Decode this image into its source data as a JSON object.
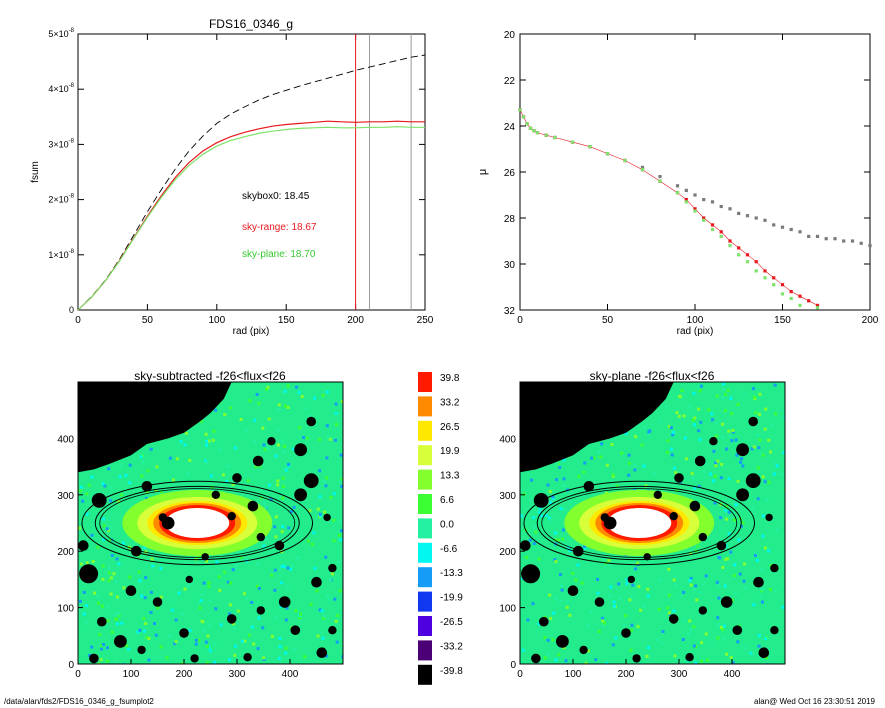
{
  "footer": {
    "left": "/data/alan/fds2/FDS16_0346_g_fsumplot2",
    "right": "alan@  Wed Oct 16 23:30:51 2019"
  },
  "colors": {
    "black_curve": "#000000",
    "red_curve": "#e8181e",
    "green_curve": "#7de36a",
    "gray_points": "#7a7a7a",
    "vline_red": "#e8181e",
    "vline_gray": "#9a9a9a"
  },
  "chart_data": [
    {
      "type": "line",
      "title": "FDS16_0346_g",
      "xlabel": "rad (pix)",
      "ylabel": "fsum",
      "xlim": [
        0,
        250
      ],
      "ylim": [
        0,
        5e-08
      ],
      "x_ticks": [
        "0",
        "50",
        "100",
        "150",
        "200",
        "250"
      ],
      "y_ticks": [
        {
          "base": "0",
          "exp": ""
        },
        {
          "base": "1×10",
          "exp": "-8"
        },
        {
          "base": "2×10",
          "exp": "-8"
        },
        {
          "base": "3×10",
          "exp": "-8"
        },
        {
          "base": "4×10",
          "exp": "-8"
        },
        {
          "base": "5×10",
          "exp": "-8"
        }
      ],
      "vertical_lines": [
        {
          "x": 200,
          "color": "red"
        },
        {
          "x": 210,
          "color": "gray"
        },
        {
          "x": 240,
          "color": "gray"
        }
      ],
      "annotations": [
        {
          "text": "skybox0: 18.45",
          "color": "black"
        },
        {
          "text": "sky-range: 18.67",
          "color": "red"
        },
        {
          "text": "sky-plane: 18.70",
          "color": "green"
        }
      ],
      "series": [
        {
          "style": "dashed",
          "color": "black",
          "x": [
            0,
            10,
            20,
            30,
            40,
            50,
            60,
            70,
            80,
            90,
            100,
            110,
            120,
            130,
            140,
            150,
            160,
            170,
            180,
            190,
            200,
            210,
            220,
            230,
            240,
            250
          ],
          "y": [
            0,
            2.5e-09,
            5.5e-09,
            9.2e-09,
            1.35e-08,
            1.78e-08,
            2.18e-08,
            2.55e-08,
            2.88e-08,
            3.15e-08,
            3.38e-08,
            3.55e-08,
            3.68e-08,
            3.8e-08,
            3.9e-08,
            3.98e-08,
            4.06e-08,
            4.13e-08,
            4.2e-08,
            4.27e-08,
            4.34e-08,
            4.4e-08,
            4.46e-08,
            4.52e-08,
            4.58e-08,
            4.62e-08
          ]
        },
        {
          "style": "solid",
          "color": "red",
          "x": [
            0,
            10,
            20,
            30,
            40,
            50,
            60,
            70,
            80,
            90,
            100,
            110,
            120,
            130,
            140,
            150,
            160,
            170,
            180,
            190,
            200,
            210,
            220,
            230,
            240,
            250
          ],
          "y": [
            0,
            2.4e-09,
            5.4e-09,
            9e-09,
            1.3e-08,
            1.7e-08,
            2.07e-08,
            2.4e-08,
            2.67e-08,
            2.88e-08,
            3.03e-08,
            3.14e-08,
            3.22e-08,
            3.28e-08,
            3.33e-08,
            3.36e-08,
            3.38e-08,
            3.4e-08,
            3.42e-08,
            3.41e-08,
            3.4e-08,
            3.41e-08,
            3.41e-08,
            3.42e-08,
            3.41e-08,
            3.41e-08
          ]
        },
        {
          "style": "solid",
          "color": "green",
          "x": [
            0,
            10,
            20,
            30,
            40,
            50,
            60,
            70,
            80,
            90,
            100,
            110,
            120,
            130,
            140,
            150,
            160,
            170,
            180,
            190,
            200,
            210,
            220,
            230,
            240,
            250
          ],
          "y": [
            0,
            2.4e-09,
            5.4e-09,
            8.9e-09,
            1.29e-08,
            1.68e-08,
            2.04e-08,
            2.36e-08,
            2.62e-08,
            2.82e-08,
            2.97e-08,
            3.07e-08,
            3.14e-08,
            3.2e-08,
            3.24e-08,
            3.27e-08,
            3.29e-08,
            3.3e-08,
            3.31e-08,
            3.3e-08,
            3.3e-08,
            3.31e-08,
            3.31e-08,
            3.32e-08,
            3.31e-08,
            3.31e-08
          ]
        }
      ]
    },
    {
      "type": "scatter",
      "xlabel": "rad (pix)",
      "ylabel": "μ",
      "xlim": [
        0,
        200
      ],
      "ylim": [
        32,
        20
      ],
      "x_ticks": [
        "0",
        "50",
        "100",
        "150",
        "200"
      ],
      "y_ticks": [
        "20",
        "22",
        "24",
        "26",
        "28",
        "30",
        "32"
      ],
      "series": [
        {
          "color": "gray",
          "x": [
            0,
            2,
            4,
            6,
            8,
            10,
            15,
            20,
            30,
            40,
            50,
            60,
            70,
            80,
            90,
            95,
            100,
            105,
            110,
            115,
            120,
            125,
            130,
            135,
            140,
            145,
            150,
            155,
            160,
            165,
            170,
            175,
            180,
            185,
            190,
            195,
            200
          ],
          "y": [
            23.3,
            23.6,
            23.9,
            24.1,
            24.2,
            24.3,
            24.4,
            24.5,
            24.7,
            24.9,
            25.2,
            25.5,
            25.8,
            26.2,
            26.6,
            26.8,
            27.0,
            27.2,
            27.3,
            27.5,
            27.6,
            27.8,
            27.9,
            28.0,
            28.1,
            28.3,
            28.4,
            28.5,
            28.6,
            28.8,
            28.8,
            28.9,
            28.9,
            29.0,
            29.0,
            29.1,
            29.2
          ]
        },
        {
          "color": "red",
          "x": [
            0,
            2,
            4,
            6,
            8,
            10,
            15,
            20,
            30,
            40,
            50,
            60,
            70,
            80,
            90,
            95,
            100,
            105,
            110,
            115,
            120,
            125,
            130,
            135,
            140,
            145,
            150,
            155,
            160,
            165,
            170
          ],
          "y": [
            23.3,
            23.6,
            23.9,
            24.1,
            24.2,
            24.3,
            24.4,
            24.5,
            24.7,
            24.9,
            25.2,
            25.5,
            25.9,
            26.4,
            26.9,
            27.2,
            27.6,
            28.0,
            28.3,
            28.6,
            29.0,
            29.3,
            29.6,
            29.9,
            30.3,
            30.6,
            30.9,
            31.2,
            31.4,
            31.6,
            31.8
          ]
        },
        {
          "color": "green",
          "x": [
            0,
            2,
            4,
            6,
            8,
            10,
            15,
            20,
            30,
            40,
            50,
            60,
            70,
            80,
            90,
            95,
            100,
            105,
            110,
            115,
            120,
            125,
            130,
            135,
            140,
            145,
            150,
            155,
            160,
            170
          ],
          "y": [
            23.3,
            23.6,
            23.9,
            24.1,
            24.2,
            24.3,
            24.4,
            24.5,
            24.7,
            24.9,
            25.2,
            25.5,
            25.9,
            26.4,
            26.9,
            27.3,
            27.7,
            28.1,
            28.5,
            28.8,
            29.2,
            29.6,
            29.9,
            30.3,
            30.6,
            30.9,
            31.3,
            31.5,
            31.8,
            31.9
          ]
        }
      ]
    },
    {
      "type": "heatmap",
      "title": "sky-subtracted -f26<flux<f26",
      "xlim": [
        0,
        500
      ],
      "ylim": [
        0,
        500
      ],
      "x_ticks": [
        "0",
        "100",
        "200",
        "300",
        "400"
      ],
      "y_ticks": [
        "0",
        "100",
        "200",
        "300",
        "400"
      ]
    },
    {
      "type": "heatmap",
      "title": "sky-plane -f26<flux<f26",
      "xlim": [
        0,
        500
      ],
      "ylim": [
        0,
        500
      ],
      "x_ticks": [
        "0",
        "100",
        "200",
        "300",
        "400"
      ],
      "y_ticks": [
        "0",
        "100",
        "200",
        "300",
        "400"
      ]
    }
  ],
  "colorbar": {
    "labels": [
      "39.8",
      "33.2",
      "26.5",
      "19.9",
      "13.3",
      "6.6",
      "0.0",
      "-6.6",
      "-13.3",
      "-19.9",
      "-26.5",
      "-33.2",
      "-39.8"
    ],
    "colors": [
      "#ff1a00",
      "#ff8a00",
      "#ffe800",
      "#d7ff3a",
      "#84ff2e",
      "#3cff33",
      "#23f0a0",
      "#00f8f0",
      "#149cf6",
      "#1038f0",
      "#4f00e0",
      "#4b0075",
      "#000000"
    ]
  }
}
